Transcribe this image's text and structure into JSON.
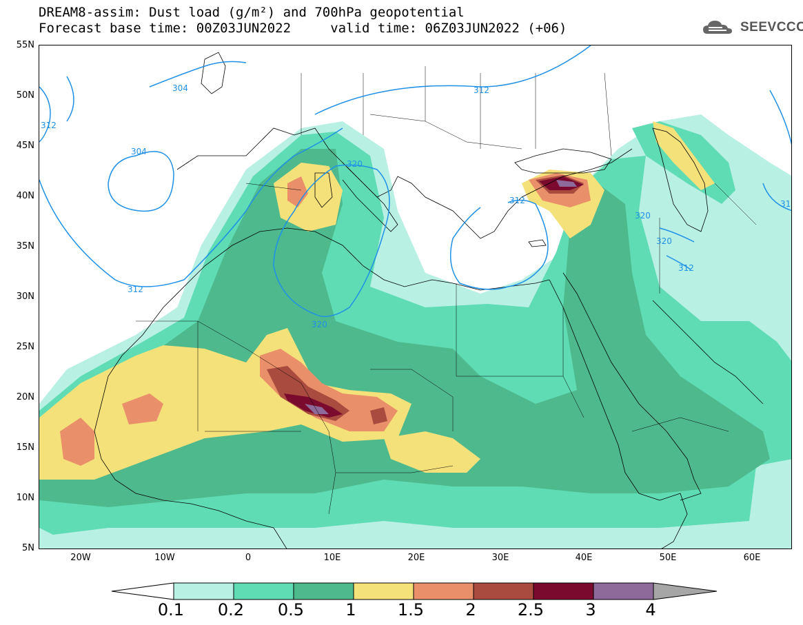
{
  "title_line1": "DREAM8-assim: Dust load (g/m²) and 700hPa geopotential",
  "title_line2": "Forecast base time: 00Z03JUN2022     valid time: 06Z03JUN2022 (+06)",
  "logo_text": "SEEVCCC",
  "lat_labels": [
    "55N",
    "50N",
    "45N",
    "40N",
    "35N",
    "30N",
    "25N",
    "20N",
    "15N",
    "10N",
    "5N"
  ],
  "lon_labels": [
    "20W",
    "10W",
    "0",
    "10E",
    "20E",
    "30E",
    "40E",
    "50E",
    "60E"
  ],
  "contour_labels": [
    "304",
    "312",
    "304",
    "312",
    "320",
    "312",
    "320",
    "320",
    "320",
    "312",
    "312",
    "31"
  ],
  "colorbar": {
    "labels": [
      "0.1",
      "0.2",
      "0.5",
      "1",
      "1.5",
      "2",
      "2.5",
      "3",
      "4"
    ],
    "colors": [
      "#b9f0e4",
      "#5fdcb4",
      "#4fb98e",
      "#f5e17a",
      "#e98f6a",
      "#a94b3f",
      "#7a0a2e",
      "#8e6a9b"
    ],
    "under_color": "#ffffff",
    "over_color": "#a6a6a6"
  },
  "colors": {
    "c01": "#b9f0e4",
    "c02": "#5fdcb4",
    "c05": "#4fb98e",
    "c1": "#f5e17a",
    "c15": "#e98f6a",
    "c2": "#a94b3f",
    "c25": "#7a0a2e",
    "c3": "#8e6a9b",
    "contour": "#1e90e6"
  }
}
